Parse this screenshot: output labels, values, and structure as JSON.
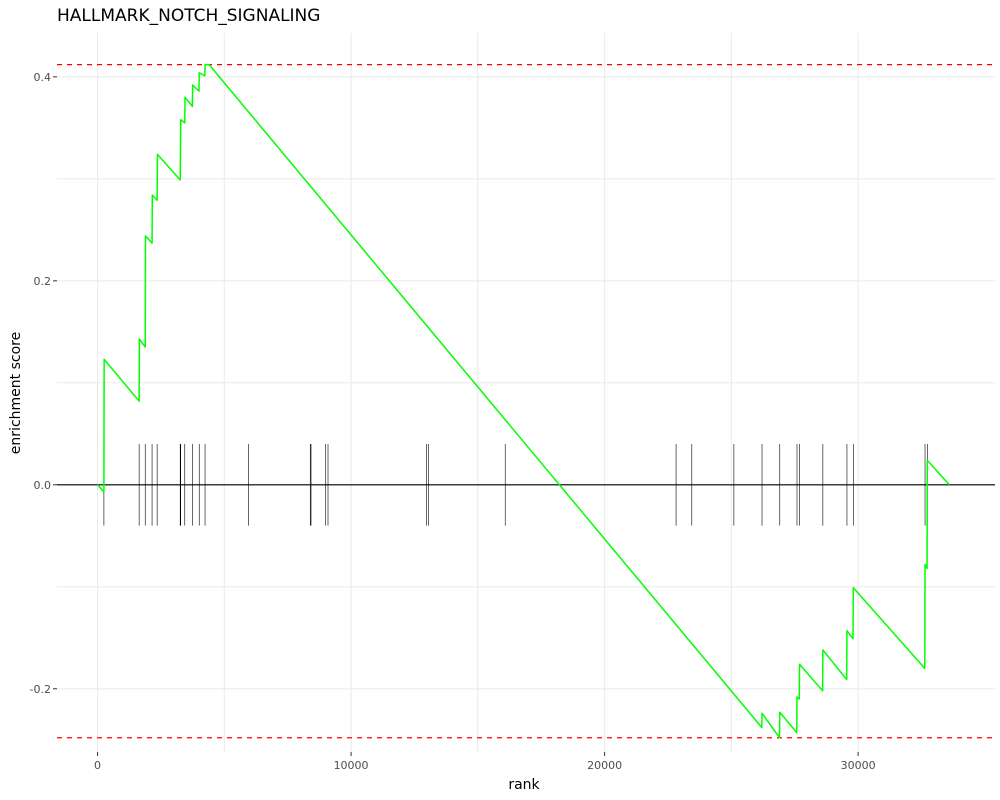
{
  "chart_data": {
    "type": "line",
    "title": "HALLMARK_NOTCH_SIGNALING",
    "xlabel": "rank",
    "ylabel": "enrichment score",
    "xlim": [
      -1600,
      35400
    ],
    "ylim": [
      -0.262,
      0.443
    ],
    "x_ticks": [
      0,
      10000,
      20000,
      30000
    ],
    "x_tick_labels": [
      "0",
      "10000",
      "20000",
      "30000"
    ],
    "y_ticks": [
      -0.2,
      0.0,
      0.2,
      0.4
    ],
    "y_tick_labels": [
      "-0.2",
      "0.0",
      "0.2",
      "0.4"
    ],
    "grid": true,
    "series": [
      {
        "name": "",
        "color": "#00ff00",
        "points": [
          [
            0,
            0.0
          ],
          [
            250,
            -0.007
          ],
          [
            260,
            0.123
          ],
          [
            1640,
            0.082
          ],
          [
            1650,
            0.143
          ],
          [
            1880,
            0.135
          ],
          [
            1890,
            0.244
          ],
          [
            2150,
            0.237
          ],
          [
            2160,
            0.284
          ],
          [
            2350,
            0.279
          ],
          [
            2360,
            0.324
          ],
          [
            3260,
            0.299
          ],
          [
            3270,
            0.331
          ],
          [
            3280,
            0.358
          ],
          [
            3440,
            0.355
          ],
          [
            3450,
            0.38
          ],
          [
            3740,
            0.371
          ],
          [
            3750,
            0.392
          ],
          [
            4000,
            0.386
          ],
          [
            4010,
            0.404
          ],
          [
            4230,
            0.401
          ],
          [
            4240,
            0.412
          ],
          [
            4400,
            0.412
          ],
          [
            26200,
            -0.238
          ],
          [
            26210,
            -0.224
          ],
          [
            26900,
            -0.248
          ],
          [
            26910,
            -0.223
          ],
          [
            27580,
            -0.243
          ],
          [
            27590,
            -0.208
          ],
          [
            27680,
            -0.21
          ],
          [
            27690,
            -0.176
          ],
          [
            28600,
            -0.202
          ],
          [
            28610,
            -0.162
          ],
          [
            29550,
            -0.191
          ],
          [
            29560,
            -0.143
          ],
          [
            29800,
            -0.151
          ],
          [
            29810,
            -0.101
          ],
          [
            32630,
            -0.18
          ],
          [
            32640,
            -0.078
          ],
          [
            32720,
            -0.082
          ],
          [
            32730,
            0.024
          ],
          [
            33600,
            0.0
          ]
        ]
      }
    ],
    "hit_ranks": [
      250,
      1640,
      1880,
      2150,
      2350,
      3260,
      3280,
      3440,
      3750,
      4010,
      4240,
      5950,
      8390,
      8420,
      9000,
      9090,
      12970,
      13060,
      16080,
      22820,
      23440,
      25100,
      26210,
      26910,
      27590,
      27690,
      28610,
      29560,
      29810,
      32640,
      32730
    ],
    "hit_height": 0.04,
    "max_es": 0.412,
    "min_es": -0.248,
    "zero_line": 0.0,
    "reference_lines": [
      {
        "y": 0.412,
        "color": "#ff0000",
        "style": "dashed"
      },
      {
        "y": -0.248,
        "color": "#ff0000",
        "style": "dashed"
      }
    ],
    "colors": {
      "curve": "#00ff00",
      "hits": "#000000",
      "reference": "#ff0000",
      "zero_line": "#000000",
      "grid": "#ebebeb"
    }
  }
}
